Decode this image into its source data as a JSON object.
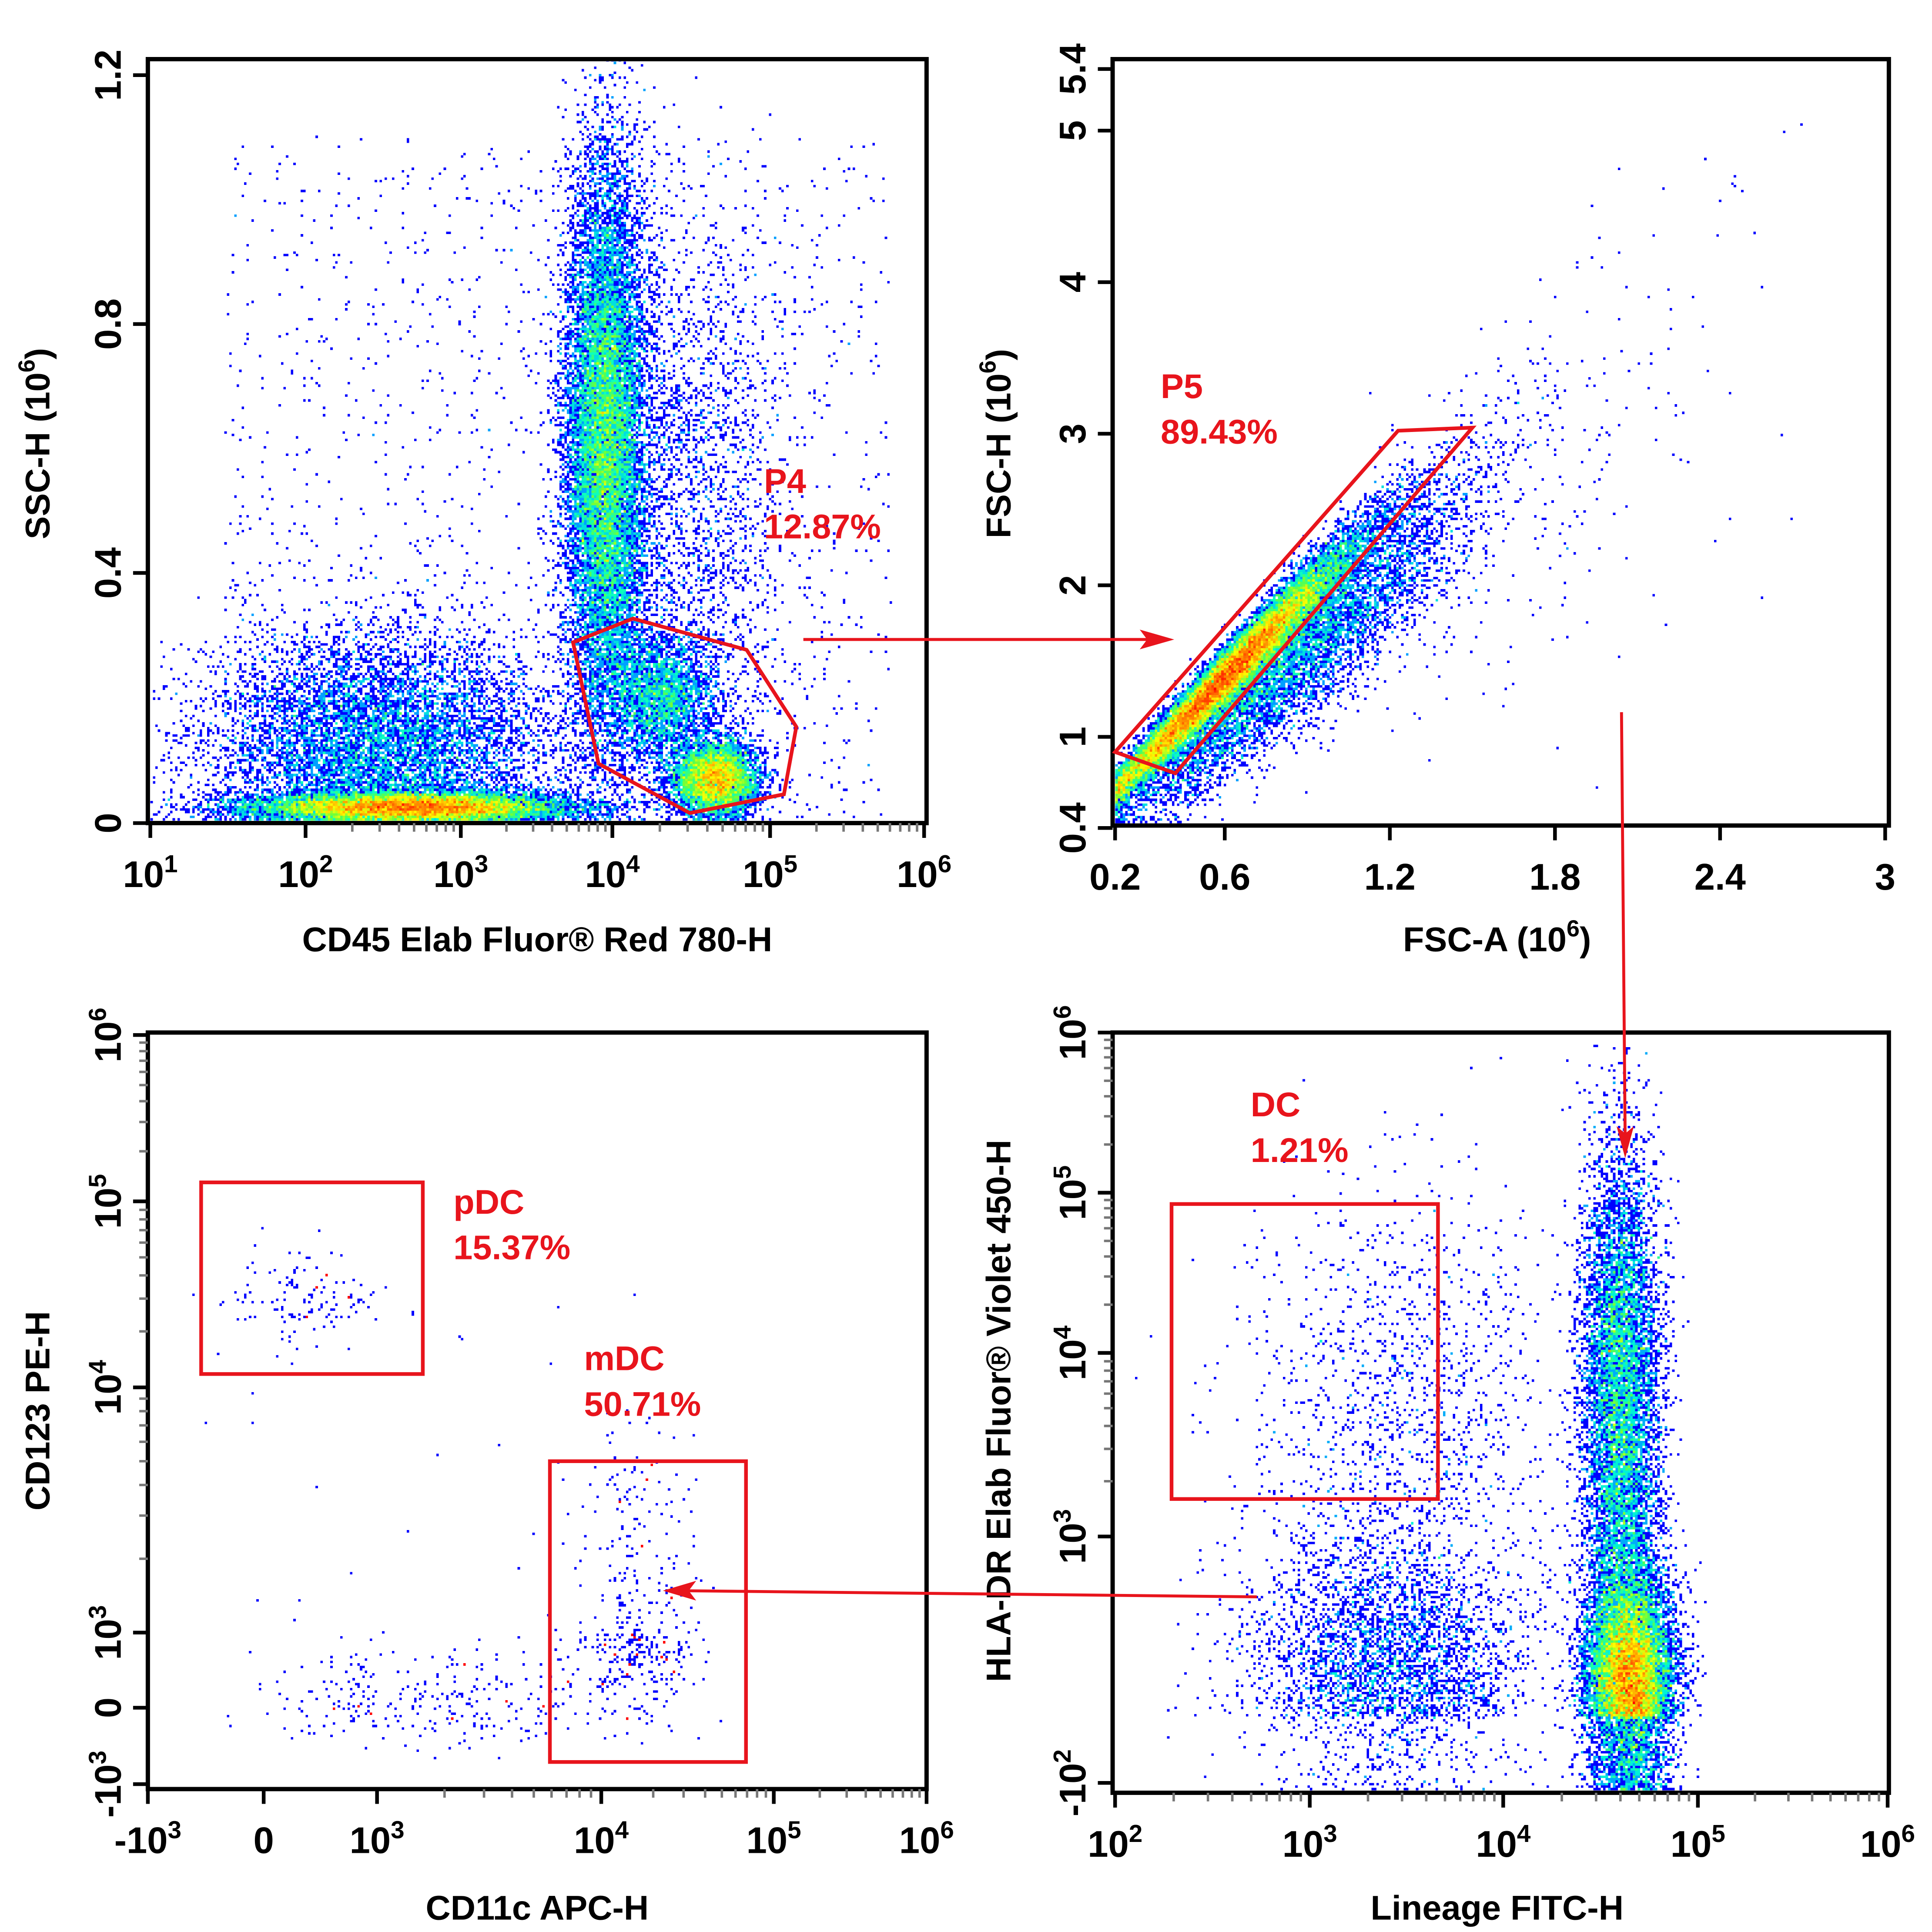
{
  "colors": {
    "gate": "#e8141c",
    "axis": "#000000",
    "colormap": [
      "#0000ff",
      "#00a0ff",
      "#00ffd0",
      "#60ff40",
      "#ffff00",
      "#ff8000",
      "#ff0000"
    ]
  },
  "chart_data": [
    {
      "id": "tl",
      "type": "heatmap",
      "xlabel": "CD45 Elab Fluor® Red 780-H",
      "ylabel": "SSC-H (10",
      "ylabel_exp": "6",
      "ylabel_tail": ")",
      "xscale": "log",
      "yscale": "linear",
      "xlim": [
        10,
        1000000
      ],
      "ylim": [
        0,
        1.2
      ],
      "xticks": [
        {
          "base": "10",
          "exp": "1",
          "v": 10
        },
        {
          "base": "10",
          "exp": "2",
          "v": 100
        },
        {
          "base": "10",
          "exp": "3",
          "v": 1000
        },
        {
          "base": "10",
          "exp": "4",
          "v": 10000
        },
        {
          "base": "10",
          "exp": "5",
          "v": 100000
        },
        {
          "base": "10",
          "exp": "6",
          "v": 1000000
        }
      ],
      "yticks": [
        {
          "base": "0",
          "v": 0
        },
        {
          "base": "0.4",
          "v": 0.4
        },
        {
          "base": "0.8",
          "v": 0.8
        },
        {
          "base": "1.2",
          "v": 1.2
        }
      ],
      "gate": {
        "name": "P4",
        "percent": "12.87%",
        "polygon": [
          [
            5500,
            0.289
          ],
          [
            13500,
            0.327
          ],
          [
            71000,
            0.277
          ],
          [
            148000,
            0.154
          ],
          [
            123000,
            0.046
          ],
          [
            31000,
            0.016
          ],
          [
            8100,
            0.095
          ]
        ]
      },
      "populations": [
        {
          "x": 500,
          "xsd": 0.5,
          "y": 0.025,
          "ysd": 0.012,
          "n": 12000
        },
        {
          "x": 300,
          "xsd": 0.55,
          "y": 0.12,
          "ysd": 0.09,
          "n": 9000
        },
        {
          "x": 9000,
          "xsd": 0.13,
          "y": 0.6,
          "ysd": 0.22,
          "n": 16000
        },
        {
          "x": 30000,
          "xsd": 0.3,
          "y": 0.5,
          "ysd": 0.25,
          "n": 2500
        },
        {
          "x": 20000,
          "xsd": 0.17,
          "y": 0.2,
          "ysd": 0.05,
          "n": 3000
        },
        {
          "x": 45000,
          "xsd": 0.13,
          "y": 0.07,
          "ysd": 0.03,
          "n": 6000
        },
        {
          "uniform": true,
          "xrange": [
            30,
            600000
          ],
          "yrange": [
            0,
            1.1
          ],
          "n": 1500
        }
      ]
    },
    {
      "id": "tr",
      "type": "heatmap",
      "xlabel": "FSC-A (10",
      "xlabel_exp": "6",
      "xlabel_tail": ")",
      "ylabel": "FSC-H (10",
      "ylabel_exp": "6",
      "ylabel_tail": ")",
      "xscale": "linear",
      "yscale": "linear",
      "xlim": [
        0.2,
        3
      ],
      "ylim": [
        0.4,
        5.4
      ],
      "xticks": [
        {
          "base": "0.2",
          "v": 0.2
        },
        {
          "base": "0.6",
          "v": 0.6
        },
        {
          "base": "1.2",
          "v": 1.2
        },
        {
          "base": "1.8",
          "v": 1.8
        },
        {
          "base": "2.4",
          "v": 2.4
        },
        {
          "base": "3",
          "v": 3
        }
      ],
      "yticks": [
        {
          "base": "0.4",
          "v": 0.4
        },
        {
          "base": "1",
          "v": 1
        },
        {
          "base": "2",
          "v": 2
        },
        {
          "base": "3",
          "v": 3
        },
        {
          "base": "4",
          "v": 4
        },
        {
          "base": "5",
          "v": 5
        },
        {
          "base": "5.4",
          "v": 5.4
        }
      ],
      "gate": {
        "name": "P5",
        "percent": "89.43%",
        "polygon": [
          [
            0.2,
            0.9
          ],
          [
            0.42,
            0.76
          ],
          [
            1.5,
            3.04
          ],
          [
            1.23,
            3.02
          ]
        ]
      },
      "populations": [
        {
          "diagonal": true,
          "x": 0.6,
          "xsd": 0.2,
          "intercept": 0.28,
          "slope": 1.85,
          "noise": 0.1,
          "n": 20000
        },
        {
          "diagonal": true,
          "x": 0.85,
          "xsd": 0.28,
          "intercept": 0.12,
          "slope": 1.65,
          "noise": 0.22,
          "n": 7000
        },
        {
          "diagonal": true,
          "x": 1.6,
          "xsd": 0.4,
          "intercept": 0.25,
          "slope": 1.4,
          "noise": 0.5,
          "n": 300
        }
      ]
    },
    {
      "id": "bl",
      "type": "heatmap",
      "xlabel": "CD11c APC-H",
      "ylabel": "CD123 PE-H",
      "xscale": "biexponential",
      "yscale": "biexponential",
      "xlim": [
        -1000,
        1000000
      ],
      "ylim": [
        -1000,
        1000000
      ],
      "xticks": [
        {
          "base": "-10",
          "exp": "3",
          "v": -1000
        },
        {
          "base": "0",
          "v": 0
        },
        {
          "base": "10",
          "exp": "3",
          "v": 1000
        },
        {
          "base": "10",
          "exp": "4",
          "v": 10000
        },
        {
          "base": "10",
          "exp": "5",
          "v": 100000
        },
        {
          "base": "10",
          "exp": "6",
          "v": 1000000
        }
      ],
      "yticks": [
        {
          "base": "-10",
          "exp": "3",
          "v": -1000
        },
        {
          "base": "0",
          "v": 0
        },
        {
          "base": "10",
          "exp": "3",
          "v": 1000
        },
        {
          "base": "10",
          "exp": "4",
          "v": 10000
        },
        {
          "base": "10",
          "exp": "5",
          "v": 100000
        },
        {
          "base": "10",
          "exp": "6",
          "v": 1000000
        }
      ],
      "gates": [
        {
          "name": "pDC",
          "percent": "15.37%",
          "rect": [
            [
              -540,
              130000
            ],
            [
              1600,
              11800
            ]
          ]
        },
        {
          "name": "mDC",
          "percent": "50.71%",
          "rect": [
            [
              5900,
              5000
            ],
            [
              69000,
              -710
            ]
          ]
        }
      ],
      "populations": [
        {
          "x": 300,
          "xsd": 0.35,
          "y": 30000,
          "ysd": 0.12,
          "n": 130
        },
        {
          "x": 17000,
          "xsd": 0.18,
          "y": 1000,
          "ysd": 0.45,
          "n": 380
        },
        {
          "x": 2000,
          "xsd": 0.5,
          "y": 150,
          "ysd": 0.35,
          "n": 300
        },
        {
          "uniform": true,
          "xrange": [
            -500,
            40000
          ],
          "yrange": [
            -500,
            60000
          ],
          "n": 40
        }
      ]
    },
    {
      "id": "br",
      "type": "heatmap",
      "xlabel": "Lineage FITC-H",
      "ylabel": "HLA-DR Elab Fluor® Violet 450-H",
      "xscale": "log",
      "yscale": "biexponential",
      "xlim": [
        100,
        1000000
      ],
      "ylim": [
        -100,
        1000000
      ],
      "xticks": [
        {
          "base": "10",
          "exp": "2",
          "v": 100
        },
        {
          "base": "10",
          "exp": "3",
          "v": 1000
        },
        {
          "base": "10",
          "exp": "4",
          "v": 10000
        },
        {
          "base": "10",
          "exp": "5",
          "v": 100000
        },
        {
          "base": "10",
          "exp": "6",
          "v": 1000000
        }
      ],
      "yticks": [
        {
          "base": "-10",
          "exp": "2",
          "v": -100
        },
        {
          "base": "10",
          "exp": "3",
          "v": 1000
        },
        {
          "base": "10",
          "exp": "4",
          "v": 10000
        },
        {
          "base": "10",
          "exp": "5",
          "v": 100000
        },
        {
          "base": "10",
          "exp": "6",
          "v": 1000000
        }
      ],
      "gate": {
        "name": "DC",
        "percent": "1.21%",
        "rect": [
          [
            195,
            85000
          ],
          [
            4600,
            1600
          ]
        ]
      },
      "populations": [
        {
          "x": 45000,
          "xsd": 0.11,
          "y": 180,
          "ysd": 0.3,
          "n": 15000
        },
        {
          "x": 40000,
          "xsd": 0.1,
          "y": 5000,
          "ysd": 0.75,
          "n": 9000
        },
        {
          "x": 2500,
          "xsd": 0.35,
          "y": 250,
          "ysd": 0.35,
          "n": 4000
        },
        {
          "x": 3000,
          "xsd": 0.4,
          "y": 4000,
          "ysd": 0.7,
          "n": 1500
        }
      ]
    }
  ]
}
